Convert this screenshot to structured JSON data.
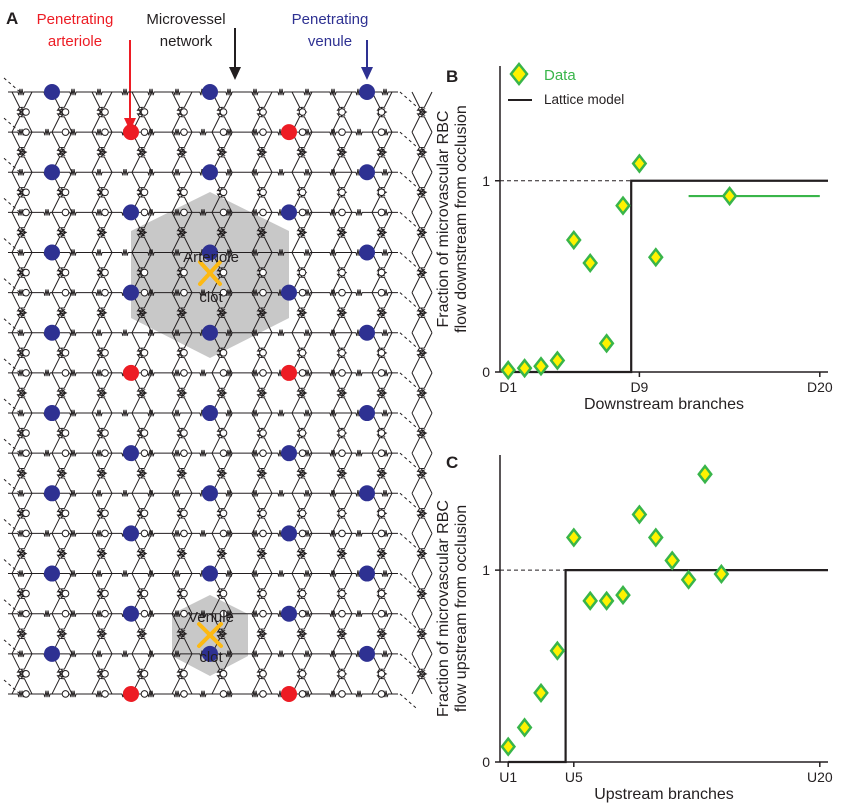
{
  "figure": {
    "panel_a": {
      "letter": "A",
      "labels": {
        "arteriole": [
          "Penetrating",
          "arteriole"
        ],
        "microvessel": [
          "Microvessel",
          "network"
        ],
        "venule": [
          "Penetrating",
          "venule"
        ]
      },
      "clot_arteriole": [
        "Arteriole",
        "clot"
      ],
      "clot_venule": [
        "Venule",
        "clot"
      ],
      "colors": {
        "arteriole": "#ed1c24",
        "venule": "#2e3192",
        "network": "#231f20",
        "clot": "#fdb913",
        "region": "#c8c8c8"
      }
    },
    "legend": {
      "data_label": "Data",
      "model_label": "Lattice model"
    },
    "colors": {
      "marker_fill": "#fff200",
      "marker_edge": "#39b54a",
      "model_line": "#231f20",
      "mean_line": "#39b54a"
    }
  },
  "chart_data": [
    {
      "panel": "B",
      "type": "scatter",
      "ylabel": [
        "Fraction of microvascular RBC",
        "flow downstream from occlusion"
      ],
      "xlabel": "Downstream branches",
      "xlim": [
        0.5,
        20.5
      ],
      "ylim": [
        0,
        1.6
      ],
      "x_ticks": [
        {
          "x": 1,
          "label": "D1"
        },
        {
          "x": 9,
          "label": "D9"
        },
        {
          "x": 20,
          "label": "D20"
        }
      ],
      "y_ticks": [
        {
          "y": 0,
          "label": "0"
        },
        {
          "y": 1,
          "label": "1"
        }
      ],
      "reference_line": {
        "y": 1,
        "style": "dashed"
      },
      "series": [
        {
          "name": "Data",
          "points": [
            {
              "x": 1,
              "y": 0.01
            },
            {
              "x": 2,
              "y": 0.02
            },
            {
              "x": 3,
              "y": 0.03
            },
            {
              "x": 4,
              "y": 0.06
            },
            {
              "x": 5,
              "y": 0.69
            },
            {
              "x": 6,
              "y": 0.57
            },
            {
              "x": 7,
              "y": 0.15
            },
            {
              "x": 8,
              "y": 0.87
            },
            {
              "x": 9,
              "y": 1.09
            },
            {
              "x": 10,
              "y": 0.6
            },
            {
              "x": 14.5,
              "y": 0.92
            }
          ]
        },
        {
          "name": "Lattice model",
          "step": [
            {
              "x": 1,
              "y": 0
            },
            {
              "x": 8.5,
              "y": 0
            },
            {
              "x": 8.5,
              "y": 1
            },
            {
              "x": 20.5,
              "y": 1
            }
          ]
        }
      ],
      "mean_segment": {
        "x": [
          12,
          20
        ],
        "y": 0.92
      }
    },
    {
      "panel": "C",
      "type": "scatter",
      "ylabel": [
        "Fraction of microvascular RBC",
        "flow upstream from occlusion"
      ],
      "xlabel": "Upstream branches",
      "xlim": [
        0.5,
        20.5
      ],
      "ylim": [
        0,
        1.6
      ],
      "x_ticks": [
        {
          "x": 1,
          "label": "U1"
        },
        {
          "x": 5,
          "label": "U5"
        },
        {
          "x": 20,
          "label": "U20"
        }
      ],
      "y_ticks": [
        {
          "y": 0,
          "label": "0"
        },
        {
          "y": 1,
          "label": "1"
        }
      ],
      "reference_line": {
        "y": 1,
        "style": "dashed"
      },
      "series": [
        {
          "name": "Data",
          "points": [
            {
              "x": 1,
              "y": 0.08
            },
            {
              "x": 2,
              "y": 0.18
            },
            {
              "x": 3,
              "y": 0.36
            },
            {
              "x": 4,
              "y": 0.58
            },
            {
              "x": 5,
              "y": 1.17
            },
            {
              "x": 6,
              "y": 0.84
            },
            {
              "x": 7,
              "y": 0.84
            },
            {
              "x": 8,
              "y": 0.87
            },
            {
              "x": 9,
              "y": 1.29
            },
            {
              "x": 10,
              "y": 1.17
            },
            {
              "x": 11,
              "y": 1.05
            },
            {
              "x": 12,
              "y": 0.95
            },
            {
              "x": 13,
              "y": 1.5
            },
            {
              "x": 14,
              "y": 0.98
            }
          ]
        },
        {
          "name": "Lattice model",
          "step": [
            {
              "x": 1,
              "y": 0
            },
            {
              "x": 4.5,
              "y": 0
            },
            {
              "x": 4.5,
              "y": 1
            },
            {
              "x": 20.5,
              "y": 1
            }
          ]
        }
      ]
    }
  ]
}
